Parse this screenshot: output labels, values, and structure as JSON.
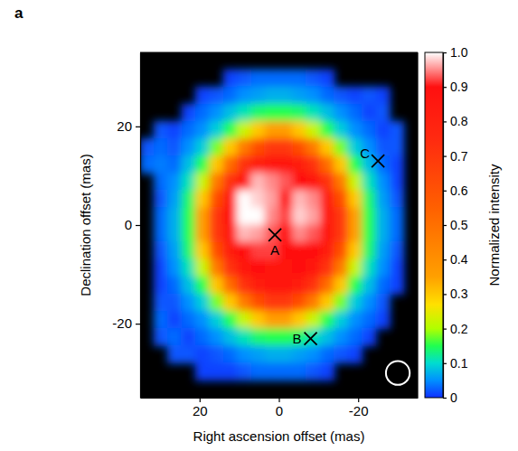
{
  "chart_data": {
    "type": "heatmap",
    "panel_label": "a",
    "x_label": "Right ascension offset (mas)",
    "y_label": "Declination offset (mas)",
    "xlim": [
      35,
      -35
    ],
    "xticks": [
      20,
      0,
      -20
    ],
    "ylim": [
      -35,
      35
    ],
    "yticks": [
      -20,
      0,
      20
    ],
    "x": [
      33.25,
      29.75,
      26.25,
      22.75,
      19.25,
      15.75,
      12.25,
      8.75,
      5.25,
      1.75,
      -1.75,
      -5.25,
      -8.75,
      -12.25,
      -15.75,
      -19.25,
      -22.75,
      -26.25,
      -29.75,
      -33.25
    ],
    "y": [
      33.25,
      29.75,
      26.25,
      22.75,
      19.25,
      15.75,
      12.25,
      8.75,
      5.25,
      1.75,
      -1.75,
      -5.25,
      -8.75,
      -12.25,
      -15.75,
      -19.25,
      -22.75,
      -26.25,
      -29.75,
      -33.25
    ],
    "z": [
      [
        null,
        null,
        null,
        null,
        null,
        null,
        null,
        null,
        null,
        null,
        null,
        null,
        null,
        null,
        null,
        null,
        null,
        null,
        null,
        null
      ],
      [
        null,
        null,
        null,
        null,
        null,
        null,
        0.01,
        0.02,
        0.03,
        0.03,
        0.03,
        0.03,
        0.02,
        0.01,
        null,
        null,
        null,
        null,
        null,
        null
      ],
      [
        null,
        null,
        null,
        null,
        0.01,
        0.02,
        0.03,
        0.05,
        0.06,
        0.07,
        0.07,
        0.06,
        0.05,
        0.03,
        0.02,
        0.01,
        0.02,
        0.01,
        null,
        null
      ],
      [
        null,
        null,
        null,
        0.01,
        0.03,
        0.05,
        0.08,
        0.11,
        0.14,
        0.15,
        0.15,
        0.14,
        0.11,
        0.08,
        0.05,
        0.03,
        0.01,
        0.02,
        null,
        null
      ],
      [
        null,
        0.02,
        0.01,
        0.03,
        0.05,
        0.09,
        0.15,
        0.22,
        0.3,
        0.36,
        0.36,
        0.3,
        0.22,
        0.15,
        0.09,
        0.05,
        0.03,
        0.01,
        0.02,
        null
      ],
      [
        0.02,
        0.03,
        0.02,
        0.05,
        0.09,
        0.18,
        0.3,
        0.47,
        0.62,
        0.7,
        0.7,
        0.62,
        0.47,
        0.3,
        0.18,
        0.09,
        0.05,
        0.02,
        0.02,
        null
      ],
      [
        0.03,
        0.04,
        0.03,
        0.08,
        0.15,
        0.3,
        0.52,
        0.72,
        0.82,
        0.85,
        0.85,
        0.82,
        0.72,
        0.52,
        0.3,
        0.15,
        0.08,
        0.03,
        0.01,
        null
      ],
      [
        null,
        0.03,
        0.05,
        0.11,
        0.22,
        0.47,
        0.72,
        0.85,
        0.97,
        0.95,
        0.93,
        0.9,
        0.85,
        0.72,
        0.47,
        0.22,
        0.11,
        0.05,
        0.01,
        null
      ],
      [
        null,
        0.02,
        0.06,
        0.14,
        0.3,
        0.62,
        0.88,
        1.0,
        0.98,
        0.96,
        0.9,
        0.97,
        0.95,
        0.82,
        0.62,
        0.3,
        0.14,
        0.06,
        0.02,
        null
      ],
      [
        null,
        0.03,
        0.07,
        0.15,
        0.36,
        0.7,
        0.9,
        1.0,
        1.0,
        0.95,
        0.92,
        0.98,
        0.96,
        0.87,
        0.7,
        0.36,
        0.15,
        0.07,
        0.03,
        null
      ],
      [
        null,
        0.03,
        0.07,
        0.15,
        0.36,
        0.7,
        0.85,
        0.97,
        0.96,
        0.93,
        0.9,
        0.95,
        0.93,
        0.85,
        0.7,
        0.36,
        0.15,
        0.07,
        0.03,
        null
      ],
      [
        null,
        0.02,
        0.06,
        0.14,
        0.3,
        0.62,
        0.82,
        0.9,
        0.92,
        0.92,
        0.9,
        0.9,
        0.9,
        0.82,
        0.62,
        0.3,
        0.14,
        0.06,
        0.02,
        null
      ],
      [
        null,
        0.01,
        0.05,
        0.11,
        0.22,
        0.47,
        0.72,
        0.85,
        0.9,
        0.88,
        0.88,
        0.9,
        0.85,
        0.72,
        0.47,
        0.22,
        0.11,
        0.05,
        0.01,
        null
      ],
      [
        null,
        0.01,
        0.03,
        0.08,
        0.15,
        0.3,
        0.52,
        0.72,
        0.82,
        0.85,
        0.85,
        0.82,
        0.72,
        0.52,
        0.3,
        0.15,
        0.08,
        0.03,
        0.01,
        null
      ],
      [
        null,
        0.02,
        0.02,
        0.05,
        0.09,
        0.18,
        0.3,
        0.47,
        0.62,
        0.7,
        0.7,
        0.62,
        0.47,
        0.3,
        0.18,
        0.09,
        0.05,
        0.02,
        null,
        null
      ],
      [
        null,
        0.03,
        0.01,
        0.03,
        0.05,
        0.09,
        0.15,
        0.22,
        0.3,
        0.36,
        0.36,
        0.3,
        0.22,
        0.15,
        0.09,
        0.05,
        0.03,
        0.01,
        null,
        null
      ],
      [
        null,
        0.02,
        0.03,
        0.01,
        0.03,
        0.05,
        0.08,
        0.11,
        0.14,
        0.15,
        0.15,
        0.14,
        0.11,
        0.08,
        0.05,
        0.03,
        0.01,
        null,
        null,
        null
      ],
      [
        null,
        null,
        0.02,
        0.02,
        0.01,
        0.02,
        0.03,
        0.05,
        0.06,
        0.07,
        0.07,
        0.06,
        0.05,
        0.03,
        0.02,
        0.01,
        null,
        null,
        null,
        null
      ],
      [
        null,
        null,
        null,
        null,
        0.01,
        0.01,
        0.01,
        0.02,
        0.03,
        0.03,
        0.03,
        0.03,
        0.02,
        0.01,
        null,
        null,
        null,
        null,
        null,
        null
      ],
      [
        null,
        null,
        null,
        null,
        null,
        null,
        null,
        null,
        null,
        null,
        null,
        null,
        null,
        null,
        null,
        null,
        null,
        null,
        null,
        null
      ]
    ],
    "colorbar": {
      "title": "Normalized intensity",
      "lim": [
        0,
        1
      ],
      "ticks": [
        0,
        0.1,
        0.2,
        0.3,
        0.4,
        0.5,
        0.6,
        0.7,
        0.8,
        0.9,
        {
          "value": 1,
          "label": "1.0"
        }
      ]
    },
    "markers": [
      {
        "label": "A",
        "x": 1,
        "y": -2
      },
      {
        "label": "B",
        "x": -8,
        "y": -23
      },
      {
        "label": "C",
        "x": -25,
        "y": 13
      }
    ],
    "beam": {
      "x": -30,
      "y": -30,
      "diameter": 6
    }
  }
}
